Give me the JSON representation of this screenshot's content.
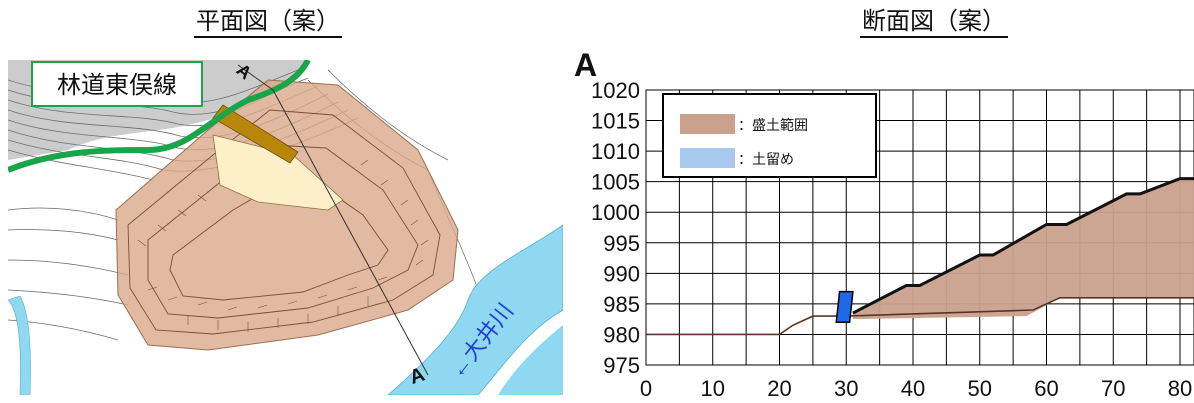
{
  "plan": {
    "title": "平面図（案）",
    "road_label": "林道東俣線",
    "river_label": "←大井川",
    "section_marker_top": "A",
    "section_marker_bottom": "A",
    "colors": {
      "fill": "#d9a98a",
      "road": "#1aa54a",
      "river": "#8fd8f2",
      "cut": "#fdf0c8",
      "wall": "#b8860b"
    }
  },
  "section": {
    "title": "断面図（案）",
    "section_marker": "A",
    "legend": [
      {
        "label": "：盛土範囲",
        "color": "#c9a18c"
      },
      {
        "label": "：土留め",
        "color": "#a8c8f0"
      }
    ]
  },
  "chart_data": {
    "type": "area",
    "title": "",
    "xlabel": "",
    "ylabel": "",
    "xlim": [
      0,
      80
    ],
    "ylim": [
      975,
      1020
    ],
    "x_ticks": [
      0,
      10,
      20,
      30,
      40,
      50,
      60,
      70,
      80
    ],
    "y_ticks": [
      975,
      980,
      985,
      990,
      995,
      1000,
      1005,
      1010,
      1015,
      1020
    ],
    "grid": true,
    "legend_position": "top-left",
    "ground_line": [
      [
        0,
        980
      ],
      [
        20,
        980
      ],
      [
        22,
        981.5
      ],
      [
        25,
        983
      ],
      [
        30,
        983
      ],
      [
        58,
        984
      ],
      [
        62,
        986
      ],
      [
        85,
        986
      ]
    ],
    "fill_top": [
      [
        31,
        983.5
      ],
      [
        39,
        988
      ],
      [
        41,
        988
      ],
      [
        50,
        993
      ],
      [
        52,
        993
      ],
      [
        60,
        998
      ],
      [
        63,
        998
      ],
      [
        72,
        1003
      ],
      [
        74,
        1003
      ],
      [
        80,
        1005.5
      ],
      [
        85,
        1005.5
      ]
    ],
    "fill_bottom": [
      [
        31,
        982.5
      ],
      [
        57,
        983
      ],
      [
        62,
        986
      ],
      [
        85,
        986
      ]
    ],
    "retaining_wall": [
      [
        28.5,
        982
      ],
      [
        30.5,
        982
      ],
      [
        31,
        987
      ],
      [
        29,
        987
      ]
    ],
    "series": [
      {
        "name": "：盛土範囲",
        "color": "#c9a18c"
      },
      {
        "name": "：土留め",
        "color": "#1e6ae6"
      }
    ]
  }
}
